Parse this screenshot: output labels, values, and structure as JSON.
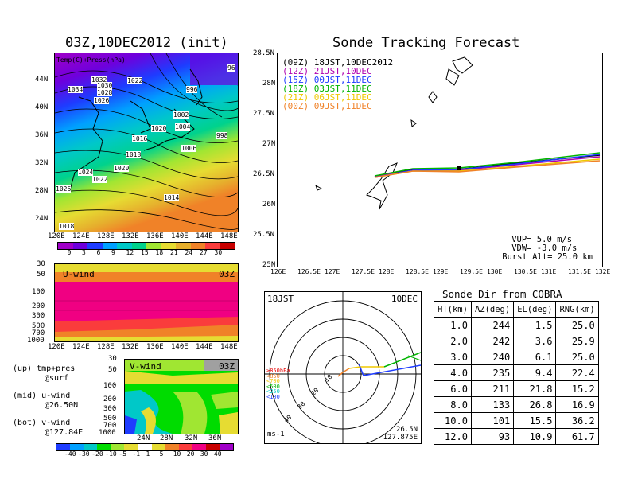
{
  "left_title": "03Z,10DEC2012 (init)",
  "right_title": "Sonde Tracking Forecast",
  "map_panel": {
    "legend": "Temp(C)+Press(hPa)",
    "lat_labels": [
      "44N",
      "40N",
      "36N",
      "32N",
      "28N",
      "24N"
    ],
    "lon_labels": [
      "120E",
      "124E",
      "128E",
      "132E",
      "136E",
      "140E",
      "144E",
      "148E"
    ],
    "pressure_labels": [
      "1032",
      "1030",
      "1022",
      "1034",
      "1028",
      "1026",
      "996",
      "1002",
      "1020",
      "1004",
      "1016",
      "998",
      "1006",
      "1018",
      "1020",
      "1024",
      "1022",
      "1026",
      "1014",
      "1018",
      "96"
    ],
    "colorbar_labels": [
      "0",
      "3",
      "6",
      "9",
      "12",
      "15",
      "18",
      "21",
      "24",
      "27",
      "30"
    ],
    "colorbar_colors": [
      "#a000c8",
      "#6e00dc",
      "#1e3cff",
      "#00a0ff",
      "#00c8c8",
      "#00d28c",
      "#a0e632",
      "#e6dc32",
      "#e6af2d",
      "#f08228",
      "#fa3c3c",
      "#c80000"
    ]
  },
  "uwind_panel": {
    "label": "U-wind",
    "time": "03Z",
    "y_labels": [
      "30",
      "50",
      "100",
      "200",
      "300",
      "500",
      "700",
      "1000"
    ],
    "x_labels": [
      "120E",
      "124E",
      "128E",
      "132E",
      "136E",
      "140E",
      "144E",
      "148E"
    ]
  },
  "vwind_panel": {
    "label": "V-wind",
    "time": "03Z",
    "y_labels": [
      "30",
      "50",
      "100",
      "200",
      "300",
      "500",
      "700",
      "1000"
    ],
    "x_labels": [
      "24N",
      "28N",
      "32N",
      "36N"
    ],
    "colorbar_labels": [
      "-40",
      "-30",
      "-20",
      "-10",
      "-5",
      "-1",
      "1",
      "5",
      "10",
      "20",
      "30",
      "40"
    ],
    "colorbar_colors": [
      "#1e3cff",
      "#00a0ff",
      "#00c8c8",
      "#00dc00",
      "#a0e632",
      "#e6dc32",
      "#ffffff",
      "#e6dc32",
      "#f08228",
      "#fa3c3c",
      "#f00082",
      "#c80000",
      "#a000c8"
    ]
  },
  "side_notes": {
    "n1a": "(up) tmp+pres",
    "n1b": "@surf",
    "n2a": "(mid) u-wind",
    "n2b": "@26.50N",
    "n3a": "(bot) v-wind",
    "n3b": "@127.84E"
  },
  "track_panel": {
    "lat_labels": [
      "28.5N",
      "28N",
      "27.5N",
      "27N",
      "26.5N",
      "26N",
      "25.5N",
      "25N"
    ],
    "lon_labels": [
      "126E",
      "126.5E",
      "127E",
      "127.5E",
      "128E",
      "128.5E",
      "129E",
      "129.5E",
      "130E",
      "130.5E",
      "131E",
      "131.5E",
      "132E"
    ],
    "legend": [
      {
        "code": "(09Z)",
        "text": "18JST,10DEC2012",
        "color": "#000000"
      },
      {
        "code": "(12Z)",
        "text": "21JST,10DEC",
        "color": "#b000b0"
      },
      {
        "code": "(15Z)",
        "text": "00JST,11DEC",
        "color": "#1e3cff"
      },
      {
        "code": "(18Z)",
        "text": "03JST,11DEC",
        "color": "#00b400"
      },
      {
        "code": "(21Z)",
        "text": "06JST,11DEC",
        "color": "#f0c800"
      },
      {
        "code": "(00Z)",
        "text": "09JST,11DEC",
        "color": "#f08228"
      }
    ],
    "params": [
      "VUP=  5.0 m/s",
      "VDW= -3.0 m/s",
      "Burst Alt= 25.0 km"
    ]
  },
  "polar_panel": {
    "time": "18JST",
    "date": "10DEC",
    "ring_labels": [
      "10",
      "20",
      "30",
      "40"
    ],
    "legend": [
      {
        "text": "≥850hPa",
        "color": "#e60000"
      },
      {
        "text": "<850",
        "color": "#f08228"
      },
      {
        "text": "<700",
        "color": "#f0c800"
      },
      {
        "text": "<500",
        "color": "#00b400"
      },
      {
        "text": "<250",
        "color": "#00c8c8"
      },
      {
        "text": "<100",
        "color": "#1e3cff"
      }
    ],
    "unit": "ms-1",
    "loc1": "26.5N",
    "loc2": "127.875E"
  },
  "direction_table": {
    "title": "Sonde Dir from COBRA",
    "headers": [
      "HT(km)",
      "AZ(deg)",
      "EL(deg)",
      "RNG(km)"
    ],
    "rows": [
      [
        "1.0",
        "244",
        "1.5",
        "25.0"
      ],
      [
        "2.0",
        "242",
        "3.6",
        "25.9"
      ],
      [
        "3.0",
        "240",
        "6.1",
        "25.0"
      ],
      [
        "4.0",
        "235",
        "9.4",
        "22.4"
      ],
      [
        "6.0",
        "211",
        "21.8",
        "15.2"
      ],
      [
        "8.0",
        "133",
        "26.8",
        "16.9"
      ],
      [
        "10.0",
        "101",
        "15.5",
        "36.2"
      ],
      [
        "12.0",
        "93",
        "10.9",
        "61.7"
      ]
    ]
  }
}
